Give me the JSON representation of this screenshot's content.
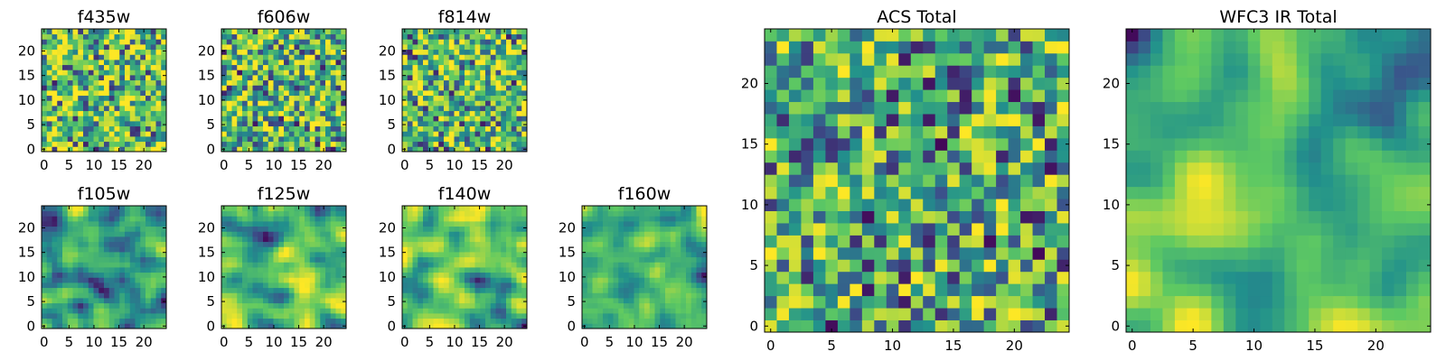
{
  "chart_data": {
    "type": "heatmap",
    "figure": "multi-panel image grid",
    "colormap": [
      "#440154",
      "#3b528b",
      "#21918c",
      "#5ec962",
      "#fde725"
    ],
    "value_range": [
      0,
      1
    ],
    "panels": [
      {
        "id": "f435w",
        "title": "f435w",
        "grid": [
          24,
          24
        ],
        "xlim": [
          -0.5,
          24.5
        ],
        "ylim": [
          -0.5,
          24.5
        ],
        "xticks": [
          "0",
          "5",
          "10",
          "15",
          "20"
        ],
        "yticks": [
          "0",
          "5",
          "10",
          "15",
          "20"
        ],
        "seed": 435,
        "smooth": 0,
        "bias": 0.1
      },
      {
        "id": "f606w",
        "title": "f606w",
        "grid": [
          24,
          24
        ],
        "xlim": [
          -0.5,
          24.5
        ],
        "ylim": [
          -0.5,
          24.5
        ],
        "xticks": [
          "0",
          "5",
          "10",
          "15",
          "20"
        ],
        "yticks": [
          "0",
          "5",
          "10",
          "15",
          "20"
        ],
        "seed": 606,
        "smooth": 0,
        "bias": 0.06
      },
      {
        "id": "f814w",
        "title": "f814w",
        "grid": [
          24,
          24
        ],
        "xlim": [
          -0.5,
          24.5
        ],
        "ylim": [
          -0.5,
          24.5
        ],
        "xticks": [
          "0",
          "5",
          "10",
          "15",
          "20"
        ],
        "yticks": [
          "0",
          "5",
          "10",
          "15",
          "20"
        ],
        "seed": 814,
        "smooth": 0,
        "bias": 0.08
      },
      {
        "id": "f105w",
        "title": "f105w",
        "grid": [
          24,
          24
        ],
        "xlim": [
          -0.5,
          24.5
        ],
        "ylim": [
          -0.5,
          24.5
        ],
        "xticks": [
          "0",
          "5",
          "10",
          "15",
          "20"
        ],
        "yticks": [
          "0",
          "5",
          "10",
          "15",
          "20"
        ],
        "seed": 105,
        "smooth": 2,
        "bias": 0.05
      },
      {
        "id": "f125w",
        "title": "f125w",
        "grid": [
          24,
          24
        ],
        "xlim": [
          -0.5,
          24.5
        ],
        "ylim": [
          -0.5,
          24.5
        ],
        "xticks": [
          "0",
          "5",
          "10",
          "15",
          "20"
        ],
        "yticks": [
          "0",
          "5",
          "10",
          "15",
          "20"
        ],
        "seed": 125,
        "smooth": 2,
        "bias": 0.04
      },
      {
        "id": "f140w",
        "title": "f140w",
        "grid": [
          24,
          24
        ],
        "xlim": [
          -0.5,
          24.5
        ],
        "ylim": [
          -0.5,
          24.5
        ],
        "xticks": [
          "0",
          "5",
          "10",
          "15",
          "20"
        ],
        "yticks": [
          "0",
          "5",
          "10",
          "15",
          "20"
        ],
        "seed": 140,
        "smooth": 2,
        "bias": 0.05
      },
      {
        "id": "f160w",
        "title": "f160w",
        "grid": [
          24,
          24
        ],
        "xlim": [
          -0.5,
          24.5
        ],
        "ylim": [
          -0.5,
          24.5
        ],
        "xticks": [
          "0",
          "5",
          "10",
          "15",
          "20"
        ],
        "yticks": [
          "0",
          "5",
          "10",
          "15",
          "20"
        ],
        "seed": 160,
        "smooth": 2,
        "bias": 0.06
      },
      {
        "id": "acs-total",
        "title": "ACS Total",
        "grid": [
          25,
          25
        ],
        "xlim": [
          -0.5,
          24.5
        ],
        "ylim": [
          -0.5,
          24.5
        ],
        "xticks": [
          "0",
          "5",
          "10",
          "15",
          "20"
        ],
        "yticks": [
          "0",
          "5",
          "10",
          "15",
          "20"
        ],
        "seed": 7,
        "smooth": 0,
        "bias": 0.02
      },
      {
        "id": "wfc3-ir-total",
        "title": "WFC3 IR Total",
        "grid": [
          25,
          25
        ],
        "xlim": [
          -0.5,
          24.5
        ],
        "ylim": [
          -0.5,
          24.5
        ],
        "xticks": [
          "0",
          "5",
          "10",
          "15",
          "20"
        ],
        "yticks": [
          "0",
          "5",
          "10",
          "15",
          "20"
        ],
        "seed": 99,
        "smooth": 3,
        "bias": 0.03
      }
    ]
  }
}
